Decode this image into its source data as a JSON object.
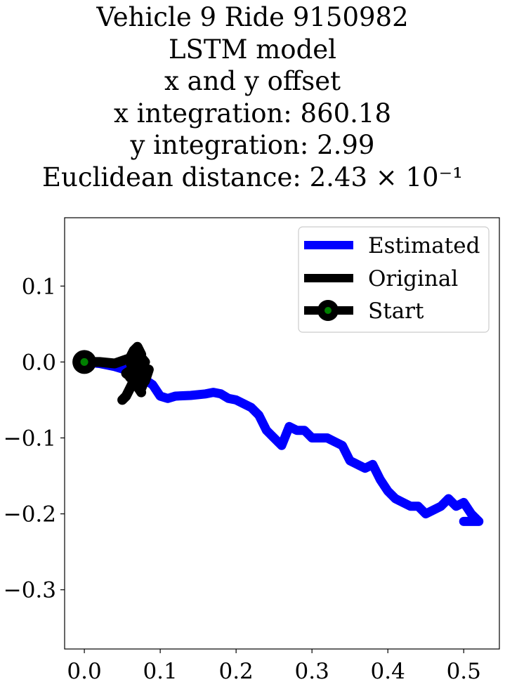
{
  "title_lines": [
    "Vehicle 9 Ride 9150982",
    "LSTM model",
    "x and y offset",
    "x integration: 860.18",
    "y integration: 2.99",
    "Euclidean distance: 2.43 × 10⁻¹"
  ],
  "chart_data": {
    "type": "line",
    "title": "Vehicle 9 Ride 9150982\nLSTM model\nx and y offset\nx integration: 860.18\ny integration: 2.99\nEuclidean distance: 2.43 × 10⁻¹",
    "xlabel": "",
    "ylabel": "",
    "xlim": [
      -0.026,
      0.547
    ],
    "ylim": [
      -0.378,
      0.19
    ],
    "x_ticks": [
      0.0,
      0.1,
      0.2,
      0.3,
      0.4,
      0.5
    ],
    "x_tick_labels": [
      "0.0",
      "0.1",
      "0.2",
      "0.3",
      "0.4",
      "0.5"
    ],
    "y_ticks": [
      0.1,
      0.0,
      -0.1,
      -0.2,
      -0.3
    ],
    "y_tick_labels": [
      "0.1",
      "0.0",
      "−0.1",
      "−0.2",
      "−0.3"
    ],
    "grid": false,
    "legend_position": "top-right",
    "series": [
      {
        "name": "Estimated",
        "color": "#0000ff",
        "x": [
          0.0,
          0.02,
          0.04,
          0.06,
          0.075,
          0.09,
          0.1,
          0.11,
          0.12,
          0.14,
          0.16,
          0.17,
          0.18,
          0.19,
          0.2,
          0.21,
          0.22,
          0.23,
          0.24,
          0.25,
          0.26,
          0.27,
          0.28,
          0.29,
          0.3,
          0.31,
          0.32,
          0.33,
          0.34,
          0.35,
          0.36,
          0.37,
          0.38,
          0.39,
          0.4,
          0.41,
          0.42,
          0.43,
          0.44,
          0.45,
          0.46,
          0.47,
          0.48,
          0.49,
          0.5,
          0.51,
          0.52,
          0.51,
          0.5
        ],
        "y": [
          0.0,
          -0.002,
          -0.006,
          -0.012,
          -0.02,
          -0.03,
          -0.045,
          -0.048,
          -0.045,
          -0.044,
          -0.042,
          -0.04,
          -0.042,
          -0.048,
          -0.05,
          -0.055,
          -0.06,
          -0.07,
          -0.09,
          -0.1,
          -0.11,
          -0.085,
          -0.09,
          -0.09,
          -0.1,
          -0.1,
          -0.1,
          -0.105,
          -0.11,
          -0.13,
          -0.135,
          -0.14,
          -0.135,
          -0.155,
          -0.17,
          -0.18,
          -0.185,
          -0.19,
          -0.19,
          -0.2,
          -0.195,
          -0.19,
          -0.18,
          -0.19,
          -0.185,
          -0.2,
          -0.21,
          -0.21,
          -0.21
        ]
      },
      {
        "name": "Original",
        "color": "#000000",
        "x": [
          0.0,
          0.02,
          0.04,
          0.06,
          0.065,
          0.07,
          0.075,
          0.065,
          0.06,
          0.07,
          0.08,
          0.07,
          0.065,
          0.075,
          0.055,
          0.07,
          0.08,
          0.085,
          0.075,
          0.06,
          0.07,
          0.075,
          0.065,
          0.06,
          0.055,
          0.05
        ],
        "y": [
          0.0,
          0.0,
          -0.002,
          0.005,
          0.015,
          0.02,
          0.01,
          -0.01,
          0.0,
          0.012,
          0.0,
          -0.02,
          -0.01,
          -0.03,
          -0.015,
          -0.005,
          -0.025,
          -0.01,
          -0.035,
          -0.02,
          -0.03,
          -0.04,
          -0.025,
          -0.035,
          -0.045,
          -0.05
        ]
      }
    ],
    "start_point": {
      "x": 0.0,
      "y": 0.0,
      "label": "Start",
      "fill": "#008000",
      "edge": "#000000"
    }
  },
  "legend": {
    "estimated": "Estimated",
    "original": "Original",
    "start": "Start"
  }
}
